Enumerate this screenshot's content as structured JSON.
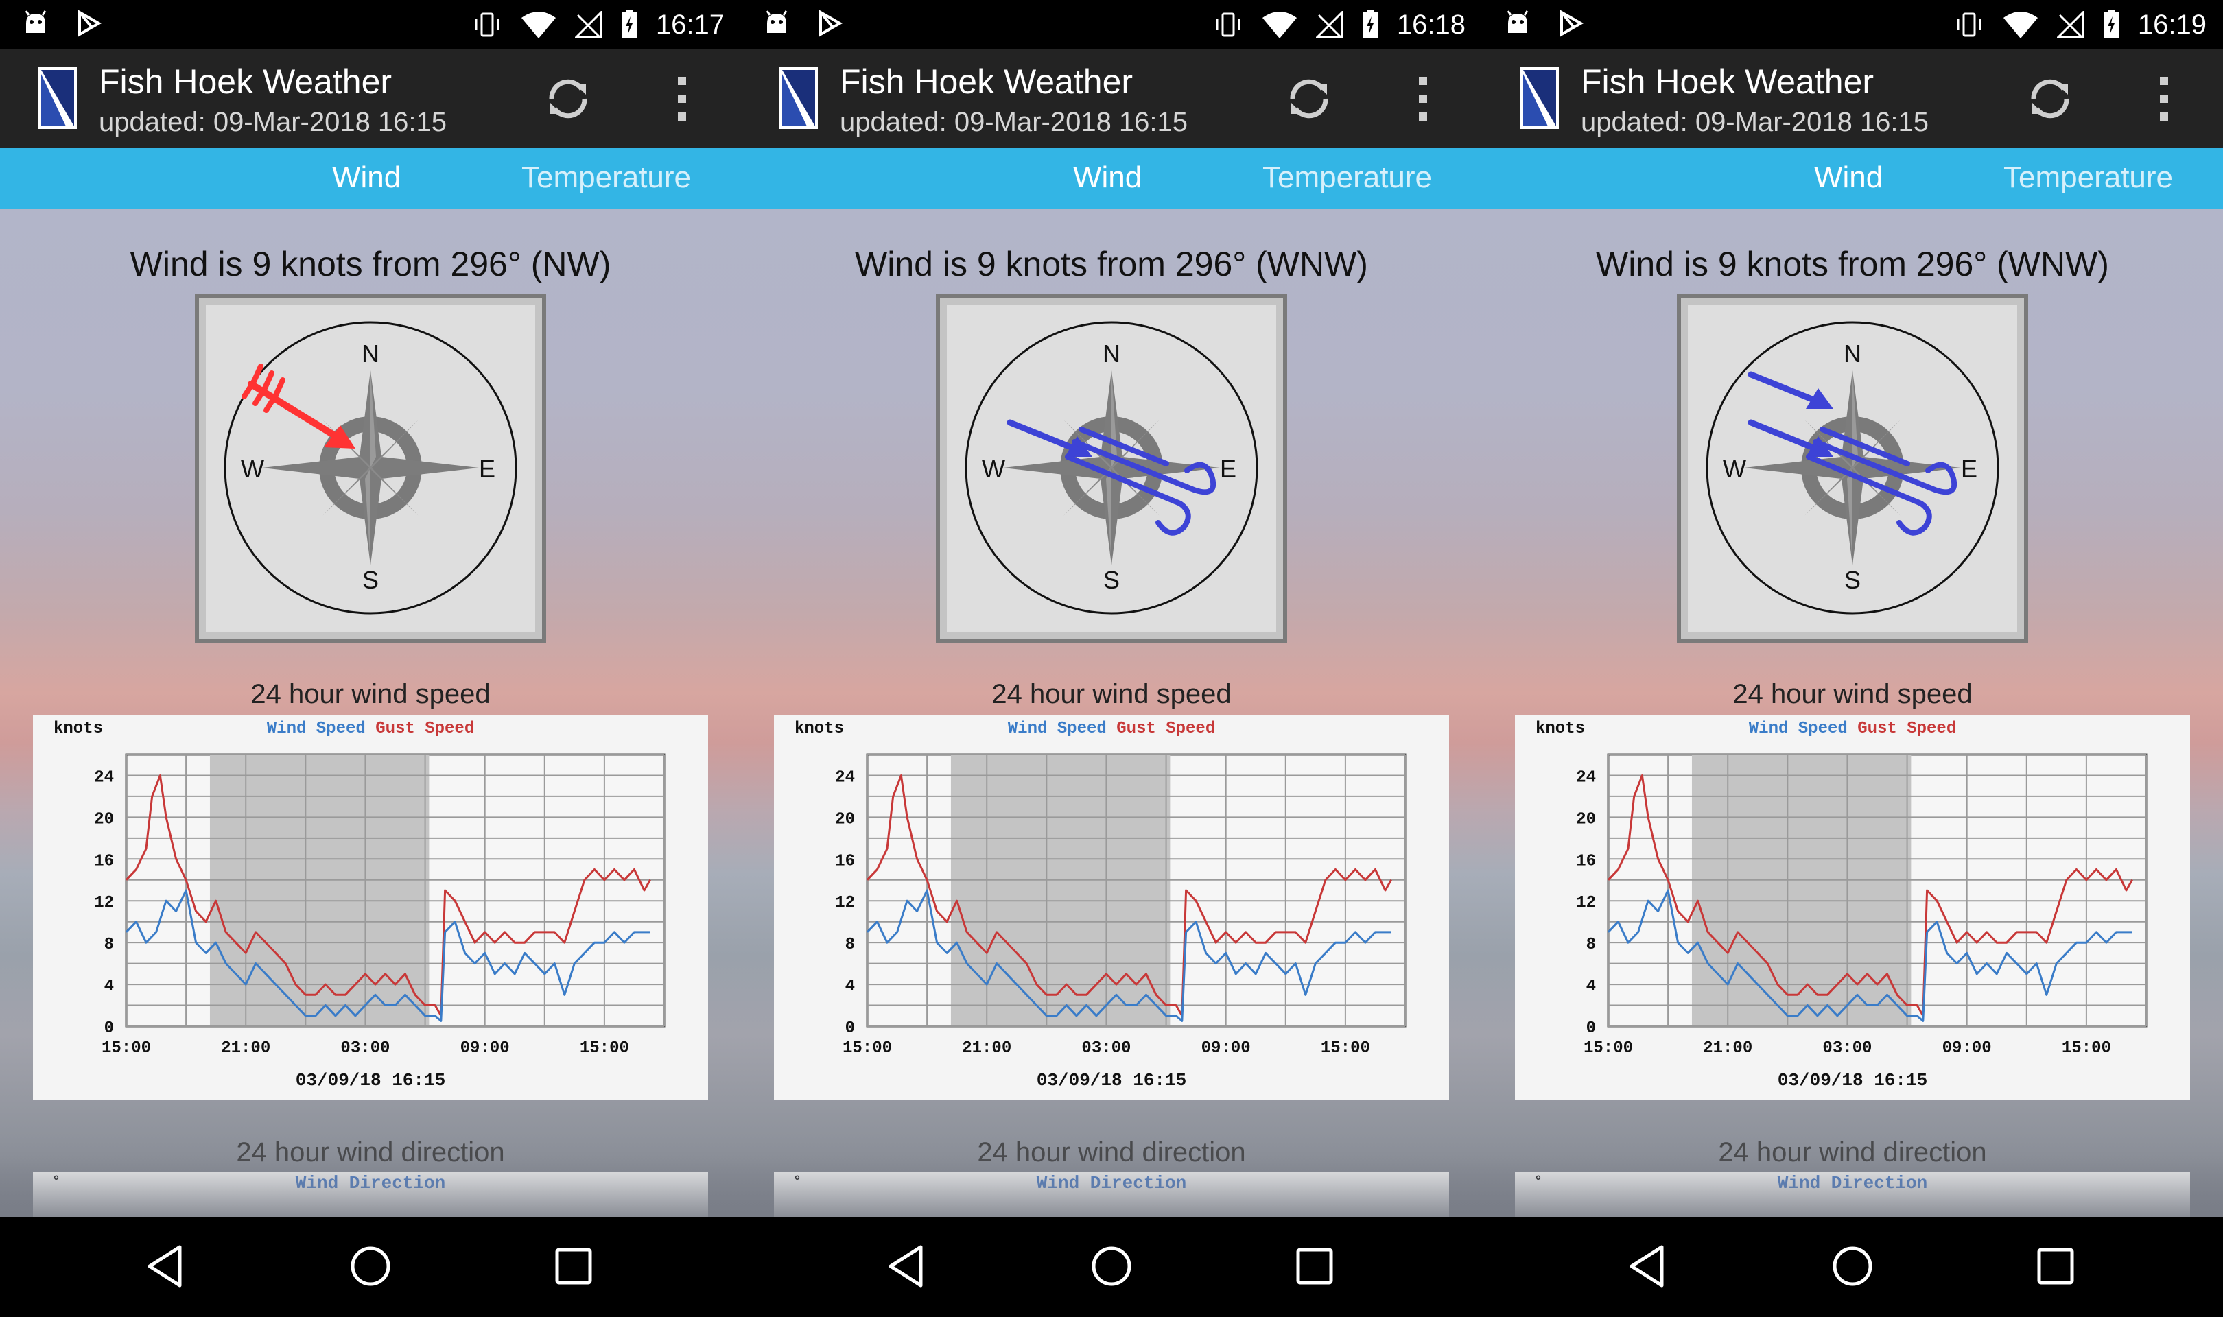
{
  "panels": [
    {
      "status_time": "16:17",
      "app_title": "Fish Hoek Weather",
      "updated": "updated: 09-Mar-2018 16:15",
      "tabs": [
        "Wind",
        "Temperature"
      ],
      "wind_text": "Wind is 9 knots from 296° (NW)",
      "arrow_color": "#ff3333",
      "arrow_style": "barbed-arrow",
      "speed_caption": "24 hour wind speed",
      "direction_caption": "24 hour wind direction"
    },
    {
      "status_time": "16:18",
      "app_title": "Fish Hoek Weather",
      "updated": "updated: 09-Mar-2018 16:15",
      "tabs": [
        "Wind",
        "Temperature"
      ],
      "wind_text": "Wind is 9 knots from 296° (WNW)",
      "arrow_color": "#3d43d6",
      "arrow_style": "wind-swirl-single",
      "speed_caption": "24 hour wind speed",
      "direction_caption": "24 hour wind direction"
    },
    {
      "status_time": "16:19",
      "app_title": "Fish Hoek Weather",
      "updated": "updated: 09-Mar-2018 16:15",
      "tabs": [
        "Wind",
        "Temperature"
      ],
      "wind_text": "Wind is 9 knots from 296° (WNW)",
      "arrow_color": "#3d43d6",
      "arrow_style": "wind-swirl-double",
      "speed_caption": "24 hour wind speed",
      "direction_caption": "24 hour wind direction"
    }
  ],
  "compass": {
    "north": "N",
    "south": "S",
    "east": "E",
    "west": "W"
  },
  "icons": {
    "status_left": [
      "android-icon",
      "play-store-icon"
    ],
    "status_right": [
      "vibrate-icon",
      "wifi-icon",
      "no-signal-icon",
      "battery-charging-icon"
    ],
    "app_logo": "fish-hoek-logo-icon",
    "refresh": "refresh-icon",
    "menu": "more-vert-icon",
    "nav": [
      "back-icon",
      "home-icon",
      "recents-icon"
    ]
  },
  "chart_data": [
    {
      "type": "line",
      "title": "",
      "ylabel": "knots",
      "xlabel": "03/09/18  16:15",
      "x_tick_labels": [
        "15:00",
        "21:00",
        "03:00",
        "09:00",
        "15:00"
      ],
      "y_ticks": [
        0,
        4,
        8,
        12,
        16,
        20,
        24
      ],
      "ylim": [
        0,
        26
      ],
      "xlim_hours": [
        0,
        27
      ],
      "shaded_night_hours": [
        4.2,
        15.2
      ],
      "grid": true,
      "legend_placement": "top-center",
      "series": [
        {
          "name": "Wind Speed",
          "color": "#3a7cc8",
          "points": [
            [
              0,
              9
            ],
            [
              0.5,
              10
            ],
            [
              1,
              8
            ],
            [
              1.5,
              9
            ],
            [
              2,
              12
            ],
            [
              2.5,
              11
            ],
            [
              3,
              13
            ],
            [
              3.5,
              8
            ],
            [
              4,
              7
            ],
            [
              4.5,
              8
            ],
            [
              5,
              6
            ],
            [
              5.5,
              5
            ],
            [
              6,
              4
            ],
            [
              6.5,
              6
            ],
            [
              7,
              5
            ],
            [
              7.5,
              4
            ],
            [
              8,
              3
            ],
            [
              8.5,
              2
            ],
            [
              9,
              1
            ],
            [
              9.5,
              1
            ],
            [
              10,
              2
            ],
            [
              10.5,
              1
            ],
            [
              11,
              2
            ],
            [
              11.5,
              1
            ],
            [
              12,
              2
            ],
            [
              12.5,
              3
            ],
            [
              13,
              2
            ],
            [
              13.5,
              2
            ],
            [
              14,
              3
            ],
            [
              14.5,
              2
            ],
            [
              15,
              1
            ],
            [
              15.5,
              1
            ],
            [
              15.8,
              0.5
            ],
            [
              16,
              9
            ],
            [
              16.5,
              10
            ],
            [
              17,
              7
            ],
            [
              17.5,
              6
            ],
            [
              18,
              7
            ],
            [
              18.5,
              5
            ],
            [
              19,
              6
            ],
            [
              19.5,
              5
            ],
            [
              20,
              7
            ],
            [
              20.5,
              6
            ],
            [
              21,
              5
            ],
            [
              21.5,
              6
            ],
            [
              22,
              3
            ],
            [
              22.5,
              6
            ],
            [
              23,
              7
            ],
            [
              23.5,
              8
            ],
            [
              24,
              8
            ],
            [
              24.5,
              9
            ],
            [
              25,
              8
            ],
            [
              25.5,
              9
            ],
            [
              26,
              9
            ],
            [
              26.3,
              9
            ]
          ]
        },
        {
          "name": "Gust Speed",
          "color": "#c83838",
          "points": [
            [
              0,
              14
            ],
            [
              0.5,
              15
            ],
            [
              1,
              17
            ],
            [
              1.3,
              22
            ],
            [
              1.7,
              24
            ],
            [
              2,
              20
            ],
            [
              2.5,
              16
            ],
            [
              3,
              14
            ],
            [
              3.5,
              11
            ],
            [
              4,
              10
            ],
            [
              4.5,
              12
            ],
            [
              5,
              9
            ],
            [
              5.5,
              8
            ],
            [
              6,
              7
            ],
            [
              6.5,
              9
            ],
            [
              7,
              8
            ],
            [
              7.5,
              7
            ],
            [
              8,
              6
            ],
            [
              8.5,
              4
            ],
            [
              9,
              3
            ],
            [
              9.5,
              3
            ],
            [
              10,
              4
            ],
            [
              10.5,
              3
            ],
            [
              11,
              3
            ],
            [
              11.5,
              4
            ],
            [
              12,
              5
            ],
            [
              12.5,
              4
            ],
            [
              13,
              5
            ],
            [
              13.5,
              4
            ],
            [
              14,
              5
            ],
            [
              14.5,
              3
            ],
            [
              15,
              2
            ],
            [
              15.5,
              2
            ],
            [
              15.8,
              1
            ],
            [
              16,
              13
            ],
            [
              16.5,
              12
            ],
            [
              17,
              10
            ],
            [
              17.5,
              8
            ],
            [
              18,
              9
            ],
            [
              18.5,
              8
            ],
            [
              19,
              9
            ],
            [
              19.5,
              8
            ],
            [
              20,
              8
            ],
            [
              20.5,
              9
            ],
            [
              21,
              9
            ],
            [
              21.5,
              9
            ],
            [
              22,
              8
            ],
            [
              22.5,
              11
            ],
            [
              23,
              14
            ],
            [
              23.5,
              15
            ],
            [
              24,
              14
            ],
            [
              24.5,
              15
            ],
            [
              25,
              14
            ],
            [
              25.5,
              15
            ],
            [
              26,
              13
            ],
            [
              26.3,
              14
            ]
          ]
        }
      ]
    }
  ]
}
